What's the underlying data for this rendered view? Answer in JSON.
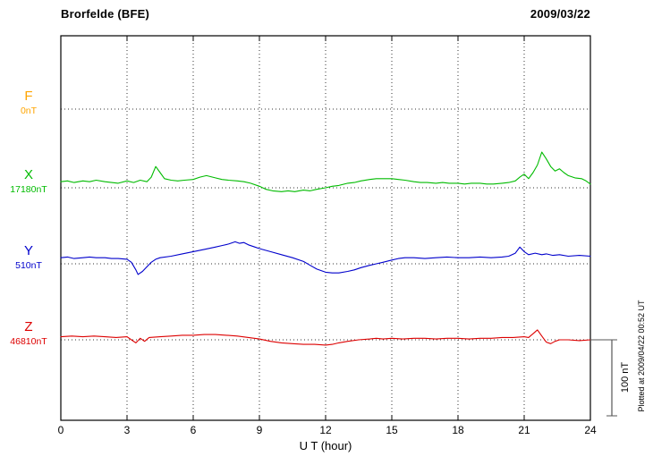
{
  "header": {
    "title": "Brorfelde (BFE)",
    "date": "2009/03/22"
  },
  "chart_data": {
    "type": "line",
    "title": "Brorfelde (BFE)",
    "date": "2009/03/22",
    "xlabel": "U T (hour)",
    "xlim": [
      0,
      24
    ],
    "xticks": [
      0,
      3,
      6,
      9,
      12,
      15,
      18,
      21,
      24
    ],
    "grid": "dotted vertical lines every 3 hours; dotted horizontal baseline for each trace",
    "scale_bar": {
      "label": "100 nT",
      "nT": 100
    },
    "plotted_at": "Plotted at 2009/04/22 00:52 UT",
    "series": [
      {
        "name": "F",
        "baseline_label": "0nT",
        "color": "#FFA500",
        "unit": "nT",
        "trace_visible": false,
        "points": [
          [
            0,
            0
          ],
          [
            24,
            0
          ]
        ]
      },
      {
        "name": "X",
        "baseline_label": "17180nT",
        "color": "#00BB00",
        "unit": "nT",
        "trace_visible": true,
        "points": [
          [
            0,
            8
          ],
          [
            0.3,
            9
          ],
          [
            0.6,
            7
          ],
          [
            1,
            9
          ],
          [
            1.3,
            8
          ],
          [
            1.6,
            10
          ],
          [
            2,
            8
          ],
          [
            2.3,
            7
          ],
          [
            2.6,
            6
          ],
          [
            3,
            9
          ],
          [
            3.3,
            7
          ],
          [
            3.6,
            10
          ],
          [
            3.9,
            8
          ],
          [
            4.1,
            14
          ],
          [
            4.3,
            28
          ],
          [
            4.5,
            20
          ],
          [
            4.7,
            12
          ],
          [
            5,
            10
          ],
          [
            5.3,
            9
          ],
          [
            5.6,
            10
          ],
          [
            6,
            11
          ],
          [
            6.3,
            14
          ],
          [
            6.6,
            16
          ],
          [
            7,
            13
          ],
          [
            7.3,
            11
          ],
          [
            7.6,
            10
          ],
          [
            8,
            9
          ],
          [
            8.3,
            8
          ],
          [
            8.6,
            6
          ],
          [
            9,
            2
          ],
          [
            9.3,
            -2
          ],
          [
            9.6,
            -4
          ],
          [
            10,
            -5
          ],
          [
            10.3,
            -4
          ],
          [
            10.6,
            -5
          ],
          [
            11,
            -3
          ],
          [
            11.3,
            -4
          ],
          [
            11.6,
            -2
          ],
          [
            12,
            0
          ],
          [
            12.3,
            2
          ],
          [
            12.6,
            3
          ],
          [
            13,
            6
          ],
          [
            13.3,
            7
          ],
          [
            13.6,
            9
          ],
          [
            14,
            11
          ],
          [
            14.3,
            12
          ],
          [
            14.6,
            12
          ],
          [
            15,
            12
          ],
          [
            15.3,
            11
          ],
          [
            15.6,
            10
          ],
          [
            16,
            8
          ],
          [
            16.3,
            7
          ],
          [
            16.6,
            7
          ],
          [
            17,
            6
          ],
          [
            17.3,
            7
          ],
          [
            17.6,
            6
          ],
          [
            18,
            6
          ],
          [
            18.3,
            5
          ],
          [
            18.6,
            6
          ],
          [
            19,
            6
          ],
          [
            19.3,
            5
          ],
          [
            19.6,
            5
          ],
          [
            20,
            6
          ],
          [
            20.3,
            7
          ],
          [
            20.6,
            9
          ],
          [
            20.8,
            14
          ],
          [
            21,
            18
          ],
          [
            21.2,
            12
          ],
          [
            21.4,
            20
          ],
          [
            21.6,
            30
          ],
          [
            21.8,
            47
          ],
          [
            22,
            38
          ],
          [
            22.2,
            28
          ],
          [
            22.4,
            22
          ],
          [
            22.6,
            25
          ],
          [
            22.8,
            20
          ],
          [
            23,
            16
          ],
          [
            23.3,
            13
          ],
          [
            23.6,
            12
          ],
          [
            23.8,
            9
          ],
          [
            24,
            5
          ]
        ]
      },
      {
        "name": "Y",
        "baseline_label": "510nT",
        "color": "#0000CC",
        "unit": "nT",
        "trace_visible": true,
        "points": [
          [
            0,
            8
          ],
          [
            0.3,
            9
          ],
          [
            0.6,
            7
          ],
          [
            1,
            8
          ],
          [
            1.3,
            9
          ],
          [
            1.6,
            8
          ],
          [
            2,
            8
          ],
          [
            2.3,
            7
          ],
          [
            2.6,
            7
          ],
          [
            3,
            6
          ],
          [
            3.2,
            2
          ],
          [
            3.4,
            -8
          ],
          [
            3.5,
            -14
          ],
          [
            3.7,
            -10
          ],
          [
            3.9,
            -4
          ],
          [
            4.1,
            2
          ],
          [
            4.3,
            6
          ],
          [
            4.5,
            8
          ],
          [
            5,
            10
          ],
          [
            5.5,
            13
          ],
          [
            6,
            16
          ],
          [
            6.5,
            19
          ],
          [
            7,
            22
          ],
          [
            7.3,
            24
          ],
          [
            7.6,
            26
          ],
          [
            7.9,
            29
          ],
          [
            8.1,
            27
          ],
          [
            8.3,
            28
          ],
          [
            8.5,
            25
          ],
          [
            8.8,
            22
          ],
          [
            9,
            20
          ],
          [
            9.5,
            16
          ],
          [
            10,
            12
          ],
          [
            10.5,
            8
          ],
          [
            11,
            3
          ],
          [
            11.3,
            -2
          ],
          [
            11.6,
            -7
          ],
          [
            12,
            -11
          ],
          [
            12.3,
            -12
          ],
          [
            12.6,
            -12
          ],
          [
            13,
            -10
          ],
          [
            13.3,
            -8
          ],
          [
            13.6,
            -5
          ],
          [
            14,
            -2
          ],
          [
            14.3,
            0
          ],
          [
            14.6,
            2
          ],
          [
            15,
            5
          ],
          [
            15.3,
            7
          ],
          [
            15.6,
            8
          ],
          [
            16,
            8
          ],
          [
            16.5,
            7
          ],
          [
            17,
            8
          ],
          [
            17.5,
            9
          ],
          [
            18,
            8
          ],
          [
            18.5,
            8
          ],
          [
            19,
            9
          ],
          [
            19.5,
            8
          ],
          [
            20,
            9
          ],
          [
            20.3,
            10
          ],
          [
            20.6,
            14
          ],
          [
            20.8,
            22
          ],
          [
            21,
            16
          ],
          [
            21.2,
            12
          ],
          [
            21.5,
            14
          ],
          [
            21.8,
            12
          ],
          [
            22,
            13
          ],
          [
            22.3,
            11
          ],
          [
            22.6,
            12
          ],
          [
            23,
            10
          ],
          [
            23.5,
            11
          ],
          [
            24,
            10
          ]
        ]
      },
      {
        "name": "Z",
        "baseline_label": "46810nT",
        "color": "#DD0000",
        "unit": "nT",
        "trace_visible": true,
        "points": [
          [
            0,
            4
          ],
          [
            0.5,
            5
          ],
          [
            1,
            4
          ],
          [
            1.5,
            5
          ],
          [
            2,
            4
          ],
          [
            2.5,
            3
          ],
          [
            3,
            4
          ],
          [
            3.2,
            0
          ],
          [
            3.4,
            -4
          ],
          [
            3.6,
            2
          ],
          [
            3.8,
            -2
          ],
          [
            4,
            3
          ],
          [
            4.5,
            4
          ],
          [
            5,
            5
          ],
          [
            5.5,
            6
          ],
          [
            6,
            6
          ],
          [
            6.5,
            7
          ],
          [
            7,
            7
          ],
          [
            7.5,
            6
          ],
          [
            8,
            5
          ],
          [
            8.5,
            3
          ],
          [
            9,
            1
          ],
          [
            9.5,
            -2
          ],
          [
            10,
            -4
          ],
          [
            10.5,
            -5
          ],
          [
            11,
            -6
          ],
          [
            11.5,
            -6
          ],
          [
            12,
            -7
          ],
          [
            12.3,
            -6
          ],
          [
            12.6,
            -4
          ],
          [
            13,
            -2
          ],
          [
            13.5,
            0
          ],
          [
            14,
            1
          ],
          [
            14.3,
            2
          ],
          [
            14.6,
            1
          ],
          [
            15,
            2
          ],
          [
            15.5,
            1
          ],
          [
            16,
            2
          ],
          [
            16.5,
            2
          ],
          [
            17,
            1
          ],
          [
            17.5,
            2
          ],
          [
            18,
            2
          ],
          [
            18.5,
            1
          ],
          [
            19,
            2
          ],
          [
            19.5,
            2
          ],
          [
            20,
            3
          ],
          [
            20.5,
            3
          ],
          [
            21,
            4
          ],
          [
            21.2,
            3
          ],
          [
            21.4,
            8
          ],
          [
            21.6,
            13
          ],
          [
            21.8,
            5
          ],
          [
            22,
            -3
          ],
          [
            22.2,
            -5
          ],
          [
            22.4,
            -2
          ],
          [
            22.6,
            0
          ],
          [
            23,
            0
          ],
          [
            23.5,
            -1
          ],
          [
            24,
            0
          ]
        ]
      }
    ]
  }
}
